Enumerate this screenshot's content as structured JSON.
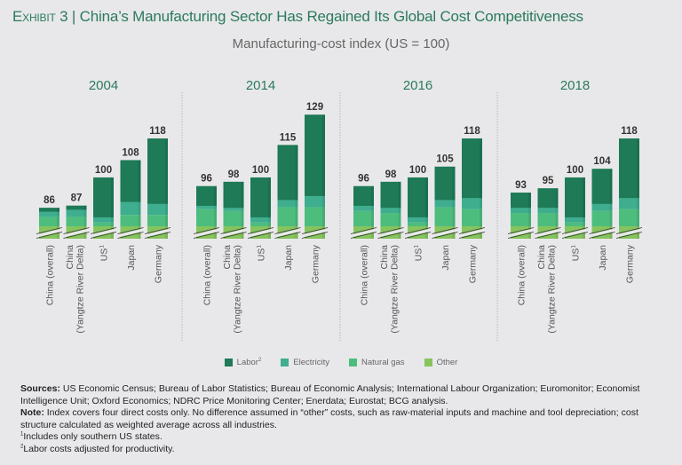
{
  "exhibit_label": "Exhibit 3",
  "title": "China’s Manufacturing Sector Has Regained Its Global Cost Competitiveness",
  "subtitle": "Manufacturing-cost index (US = 100)",
  "colors": {
    "labor": "#1e7a57",
    "electricity": "#3fae8f",
    "natural_gas": "#4dbd7e",
    "other": "#86c45d",
    "title": "#2b7a5c",
    "label": "#333333",
    "divider": "#b8b8bc"
  },
  "chart_data": {
    "type": "bar",
    "stacked": true,
    "axis_break": true,
    "title": "Manufacturing-cost index (US = 100)",
    "xlabel": "",
    "ylabel": "",
    "legend_position": "bottom",
    "categories": [
      "China (overall)",
      "China (Yangtze River Delta)",
      "US¹",
      "Japan",
      "Germany"
    ],
    "series_names": [
      "Labor²",
      "Electricity",
      "Natural gas",
      "Other"
    ],
    "panels": [
      {
        "year": "2004",
        "totals": [
          86,
          87,
          100,
          108,
          118
        ],
        "segments": {
          "labor": [
            75,
            76,
            92,
            93,
            104
          ],
          "electricity": [
            3,
            3,
            2,
            6,
            5
          ],
          "natural_gas": [
            3,
            3,
            1,
            4,
            4
          ],
          "other": [
            5,
            5,
            5,
            5,
            5
          ]
        }
      },
      {
        "year": "2014",
        "totals": [
          96,
          98,
          100,
          115,
          129
        ],
        "segments": {
          "labor": [
            83,
            86,
            92,
            99,
            111
          ],
          "electricity": [
            1,
            1,
            2,
            3,
            5
          ],
          "natural_gas": [
            7,
            6,
            1,
            8,
            8
          ],
          "other": [
            5,
            5,
            5,
            5,
            5
          ]
        }
      },
      {
        "year": "2016",
        "totals": [
          96,
          98,
          100,
          105,
          118
        ],
        "segments": {
          "labor": [
            83,
            86,
            92,
            89,
            101
          ],
          "electricity": [
            2,
            2,
            2,
            3,
            5
          ],
          "natural_gas": [
            6,
            5,
            1,
            8,
            7
          ],
          "other": [
            5,
            5,
            5,
            5,
            5
          ]
        }
      },
      {
        "year": "2018",
        "totals": [
          93,
          95,
          100,
          104,
          118
        ],
        "segments": {
          "labor": [
            81,
            83,
            92,
            90,
            101
          ],
          "electricity": [
            2,
            2,
            2,
            3,
            5
          ],
          "natural_gas": [
            5,
            5,
            1,
            6,
            7
          ],
          "other": [
            5,
            5,
            5,
            5,
            5
          ]
        }
      }
    ]
  },
  "legend": [
    {
      "key": "labor",
      "label": "Labor",
      "sup": "2"
    },
    {
      "key": "electricity",
      "label": "Electricity",
      "sup": ""
    },
    {
      "key": "natural_gas",
      "label": "Natural gas",
      "sup": ""
    },
    {
      "key": "other",
      "label": "Other",
      "sup": ""
    }
  ],
  "category_labels": [
    {
      "line1": "China (overall)",
      "line2": ""
    },
    {
      "line1": "China",
      "line2": "(Yangtze River Delta)"
    },
    {
      "line1": "US",
      "sup": "1",
      "line2": ""
    },
    {
      "line1": "Japan",
      "line2": ""
    },
    {
      "line1": "Germany",
      "line2": ""
    }
  ],
  "notes": {
    "sources_label": "Sources:",
    "sources_text": " US Economic Census; Bureau of Labor Statistics; Bureau of Economic Analysis; International Labour Organization; Euromonitor; Economist Intelligence Unit; Oxford Economics; NDRC Price Monitoring Center; Enerdata; Eurostat; BCG analysis.",
    "note_label": "Note:",
    "note_text": " Index covers four direct costs only. No difference assumed in “other” costs, such as raw-material inputs and machine and tool depreciation; cost structure calculated as weighted average across all industries.",
    "footnote1_mark": "1",
    "footnote1": "Includes only southern US states.",
    "footnote2_mark": "2",
    "footnote2": "Labor costs adjusted for productivity."
  }
}
